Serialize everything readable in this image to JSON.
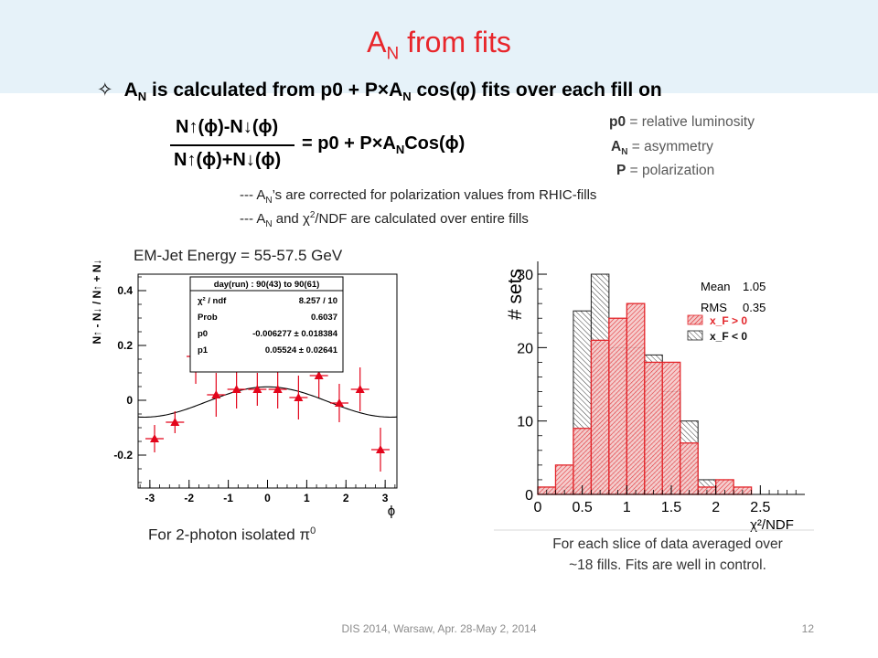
{
  "slide": {
    "title_main": "A",
    "title_sub": "N",
    "title_rest": " from fits",
    "bullet_symbol": "✧",
    "bullet_a": "A",
    "bullet_sub": "N",
    "bullet_text1": " is calculated from p0 + P×A",
    "bullet_sub2": "N",
    "bullet_text2": " cos(φ) fits over each fill on",
    "footer": "DIS 2014,  Warsaw,  Apr. 28-May 2, 2014",
    "page_number": "12"
  },
  "formula": {
    "numerator": "N↑(ϕ)-N↓(ϕ)",
    "denominator": "N↑(ϕ)+N↓(ϕ)",
    "rhs_start": "= p0 + P×A",
    "rhs_sub": "N",
    "rhs_end": "Cos(ϕ)"
  },
  "legend": {
    "p0_term": "p0",
    "p0_desc": " = relative luminosity",
    "an_term": "A",
    "an_sub": "N",
    "an_desc": " = asymmetry",
    "p_term": "P",
    "p_desc": "  =  polarization"
  },
  "notes": {
    "n1_a": "---  A",
    "n1_sub": "N",
    "n1_b": "’s are corrected for polarization values from RHIC-fills",
    "n2_a": "--- A",
    "n2_sub": "N",
    "n2_b": " and χ",
    "n2_sup": "2",
    "n2_c": "/NDF are calculated over entire fills"
  },
  "left_panel": {
    "title": "EM-Jet Energy = 55-57.5 GeV",
    "caption_text": "For 2-photon isolated π",
    "caption_sup": "0"
  },
  "right_panel": {
    "caption_line1": "For each slice of data averaged over",
    "caption_line2": "~18 fills. Fits are well in control."
  },
  "chart_data": [
    {
      "type": "scatter",
      "xlabel": "ϕ",
      "ylabel": "N↑ - N↓ / N↑ + N↓",
      "xlim": [
        -3.3,
        3.3
      ],
      "ylim": [
        -0.32,
        0.46
      ],
      "x_ticks": [
        -3,
        -2,
        -1,
        0,
        1,
        2,
        3
      ],
      "y_ticks": [
        -0.2,
        0,
        0.2,
        0.4
      ],
      "y_tick_labels": [
        "-0.2",
        "0",
        "0.2",
        "0.4"
      ],
      "grid": false,
      "marker_color": "#e3051b",
      "x": [
        -2.88,
        -2.36,
        -1.83,
        -1.31,
        -0.79,
        -0.26,
        0.26,
        0.79,
        1.31,
        1.83,
        2.36,
        2.88
      ],
      "y": [
        -0.14,
        -0.08,
        0.16,
        0.02,
        0.04,
        0.04,
        0.04,
        0.01,
        0.09,
        -0.01,
        0.04,
        -0.18
      ],
      "yerr": [
        0.05,
        0.04,
        0.1,
        0.08,
        0.07,
        0.06,
        0.07,
        0.08,
        0.08,
        0.07,
        0.08,
        0.08
      ],
      "fit": {
        "p0": -0.006277,
        "p1": 0.05524
      },
      "stats": {
        "header": "day(run) : 90(43) to 90(61)",
        "rows": [
          {
            "name": "χ² / ndf",
            "value": "8.257 / 10"
          },
          {
            "name": "Prob",
            "value": "0.6037"
          },
          {
            "name": "p0",
            "value": "-0.006277 ± 0.018384"
          },
          {
            "name": "p1",
            "value": "0.05524 ± 0.02641"
          }
        ]
      }
    },
    {
      "type": "bar",
      "xlabel": "χ²/NDF",
      "ylabel": "# sets",
      "xlim": [
        0,
        3
      ],
      "ylim": [
        0,
        31
      ],
      "x_ticks": [
        0,
        0.5,
        1,
        1.5,
        2,
        2.5
      ],
      "x_tick_labels": [
        "0",
        "0.5",
        "1",
        "1.5",
        "2",
        "2.5"
      ],
      "y_ticks": [
        0,
        10,
        20,
        30
      ],
      "bin_edges": [
        0,
        0.2,
        0.4,
        0.6,
        0.8,
        1.0,
        1.2,
        1.4,
        1.6,
        1.8,
        2.0,
        2.2,
        2.4,
        2.6,
        2.8,
        3.0
      ],
      "stats": {
        "mean_label": "Mean",
        "mean": "1.05",
        "rms_label": "RMS",
        "rms": "0.35"
      },
      "series": [
        {
          "name": "x_F > 0",
          "color": "#e3262b",
          "values": [
            1,
            4,
            9,
            21,
            24,
            26,
            18,
            18,
            7,
            1,
            2,
            1,
            0,
            0,
            0
          ]
        },
        {
          "name": "x_F < 0",
          "color": "#222222",
          "values": [
            1,
            1,
            25,
            30,
            20,
            20,
            19,
            14,
            10,
            2,
            0,
            0,
            0,
            0,
            0
          ]
        }
      ]
    }
  ]
}
